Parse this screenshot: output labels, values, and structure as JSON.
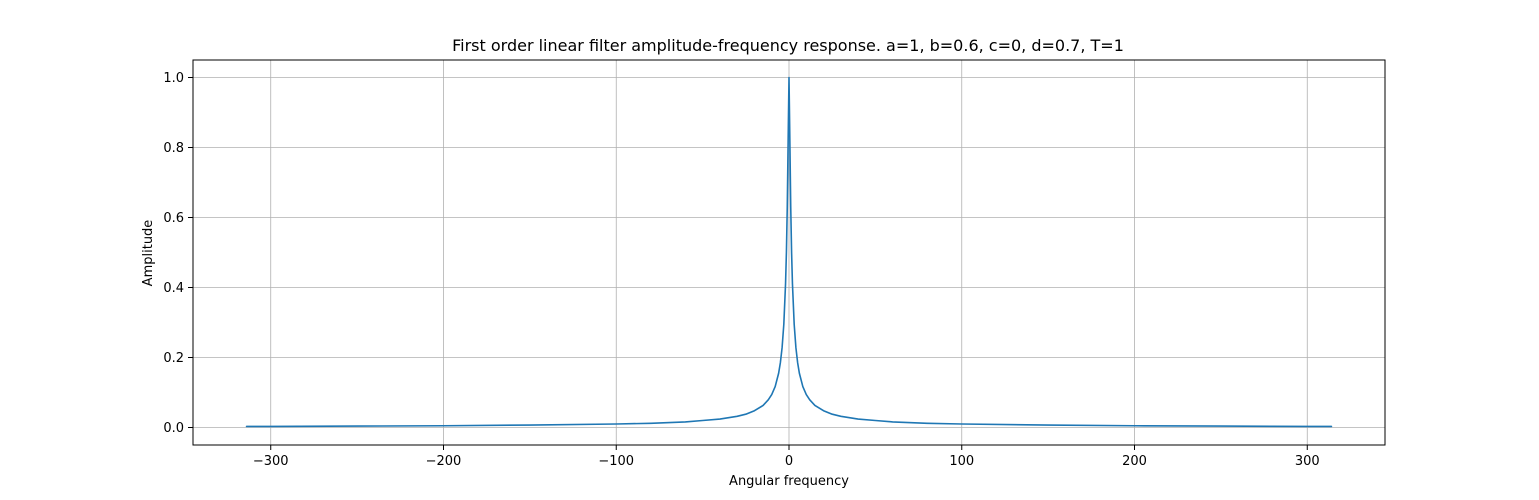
{
  "chart_data": {
    "type": "line",
    "title": "First order linear filter amplitude-frequency response. a=1, b=0.6, c=0, d=0.7, T=1",
    "xlabel": "Angular frequency",
    "ylabel": "Amplitude",
    "xlim": [
      -345,
      345
    ],
    "ylim": [
      -0.05,
      1.05
    ],
    "xticks": [
      -300,
      -200,
      -100,
      0,
      100,
      200,
      300
    ],
    "xtick_labels": [
      "−300",
      "−200",
      "−100",
      "0",
      "100",
      "200",
      "300"
    ],
    "yticks": [
      0.0,
      0.2,
      0.4,
      0.6,
      0.8,
      1.0
    ],
    "ytick_labels": [
      "0.0",
      "0.2",
      "0.4",
      "0.6",
      "0.8",
      "1.0"
    ],
    "grid": true,
    "line_color": "#1f77b4",
    "grid_color": "#b0b0b0",
    "series": [
      {
        "x": [
          -314,
          -300,
          -250,
          -200,
          -150,
          -100,
          -80,
          -60,
          -50,
          -40,
          -30,
          -25,
          -20,
          -15,
          -12,
          -10,
          -8,
          -6,
          -5,
          -4,
          -3,
          -2,
          -1.5,
          -1,
          -0.5,
          0,
          0.5,
          1,
          1.5,
          2,
          3,
          4,
          5,
          6,
          8,
          10,
          12,
          15,
          20,
          25,
          30,
          40,
          50,
          60,
          80,
          100,
          150,
          200,
          250,
          300,
          314
        ],
        "y": [
          0.003,
          0.003,
          0.004,
          0.005,
          0.007,
          0.01,
          0.012,
          0.016,
          0.02,
          0.024,
          0.032,
          0.038,
          0.048,
          0.063,
          0.079,
          0.094,
          0.117,
          0.155,
          0.185,
          0.228,
          0.295,
          0.41,
          0.5,
          0.63,
          0.82,
          1.0,
          0.82,
          0.63,
          0.5,
          0.41,
          0.295,
          0.228,
          0.185,
          0.155,
          0.117,
          0.094,
          0.079,
          0.063,
          0.048,
          0.038,
          0.032,
          0.024,
          0.02,
          0.016,
          0.012,
          0.01,
          0.007,
          0.005,
          0.004,
          0.003,
          0.003
        ]
      }
    ]
  }
}
